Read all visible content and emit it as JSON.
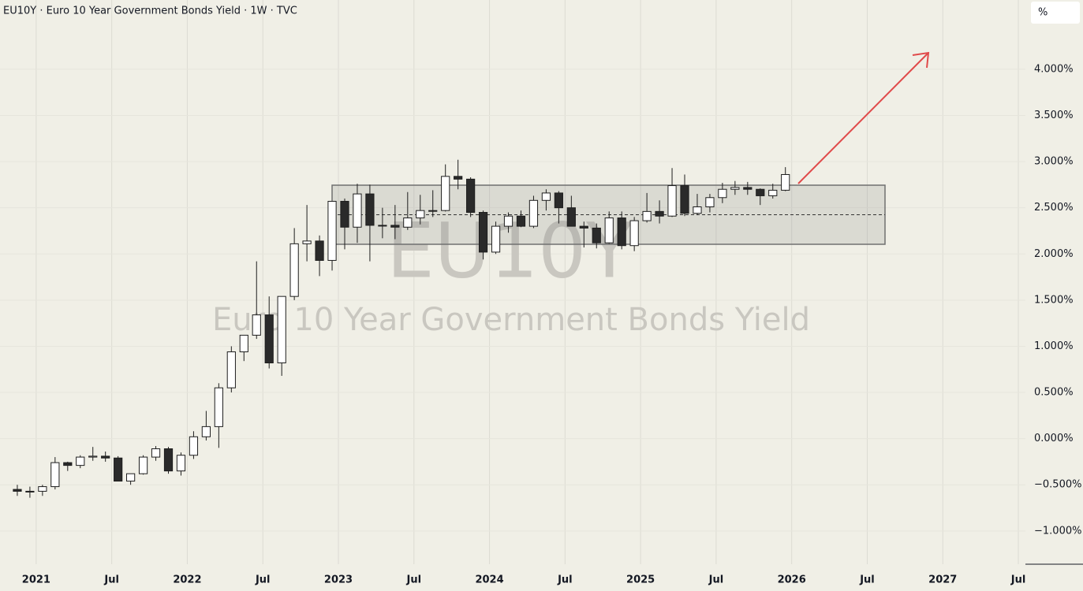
{
  "chart_data": {
    "type": "candlestick",
    "title": "EU10Y · Euro 10 Year Government Bonds Yield · 1W · TVC",
    "watermark": "EU10Y",
    "watermark_subtitle": "Euro 10 Year Government Bonds Yield",
    "unit_label": "%",
    "up_color": "#ffffff",
    "down_color": "#2a2a2a",
    "edge_color": "#1e1e1e",
    "grid": true,
    "xlim": [
      "2020-10",
      "2027-08"
    ],
    "xticks": [
      {
        "value": "2021-01",
        "label": "2021"
      },
      {
        "value": "2021-07",
        "label": "Jul"
      },
      {
        "value": "2022-01",
        "label": "2022"
      },
      {
        "value": "2022-07",
        "label": "Jul"
      },
      {
        "value": "2023-01",
        "label": "2023"
      },
      {
        "value": "2023-07",
        "label": "Jul"
      },
      {
        "value": "2024-01",
        "label": "2024"
      },
      {
        "value": "2024-07",
        "label": "Jul"
      },
      {
        "value": "2025-01",
        "label": "2025"
      },
      {
        "value": "2025-07",
        "label": "Jul"
      },
      {
        "value": "2026-01",
        "label": "2026"
      },
      {
        "value": "2026-07",
        "label": "Jul"
      },
      {
        "value": "2027-01",
        "label": "2027"
      },
      {
        "value": "2027-07",
        "label": "Jul"
      }
    ],
    "ylim": [
      -1.36,
      4.75
    ],
    "yticks": [
      {
        "value": 4,
        "label": "4.000%"
      },
      {
        "value": 3.5,
        "label": "3.500%"
      },
      {
        "value": 3,
        "label": "3.000%"
      },
      {
        "value": 2.5,
        "label": "2.500%"
      },
      {
        "value": 2,
        "label": "2.000%"
      },
      {
        "value": 1.5,
        "label": "1.500%"
      },
      {
        "value": 1,
        "label": "1.000%"
      },
      {
        "value": 0.5,
        "label": "0.500%"
      },
      {
        "value": 0,
        "label": "0.000%"
      },
      {
        "value": -0.5,
        "label": "−0.500%"
      },
      {
        "value": -1,
        "label": "−1.000%"
      }
    ],
    "x": [
      "2020-11",
      "2020-12",
      "2021-01",
      "2021-02",
      "2021-03",
      "2021-04",
      "2021-05",
      "2021-06",
      "2021-07",
      "2021-08",
      "2021-09",
      "2021-10",
      "2021-11",
      "2021-12",
      "2022-01",
      "2022-02",
      "2022-03",
      "2022-04",
      "2022-05",
      "2022-06",
      "2022-07",
      "2022-08",
      "2022-09",
      "2022-10",
      "2022-11",
      "2022-12",
      "2023-01",
      "2023-02",
      "2023-03",
      "2023-04",
      "2023-05",
      "2023-06",
      "2023-07",
      "2023-08",
      "2023-09",
      "2023-10",
      "2023-11",
      "2023-12",
      "2024-01",
      "2024-02",
      "2024-03",
      "2024-04",
      "2024-05",
      "2024-06",
      "2024-07",
      "2024-08",
      "2024-09",
      "2024-10",
      "2024-11",
      "2024-12",
      "2025-01",
      "2025-02",
      "2025-03",
      "2025-04",
      "2025-05",
      "2025-06",
      "2025-07",
      "2025-08",
      "2025-09",
      "2025-10",
      "2025-11",
      "2025-12"
    ],
    "open": [
      -0.55,
      -0.57,
      -0.57,
      -0.52,
      -0.26,
      -0.29,
      -0.2,
      -0.19,
      -0.21,
      -0.46,
      -0.38,
      -0.2,
      -0.11,
      -0.35,
      -0.18,
      0.02,
      0.13,
      0.55,
      0.94,
      1.12,
      1.34,
      0.82,
      1.54,
      2.11,
      2.14,
      1.93,
      2.57,
      2.29,
      2.65,
      2.31,
      2.31,
      2.29,
      2.39,
      2.47,
      2.47,
      2.84,
      2.81,
      2.45,
      2.02,
      2.3,
      2.41,
      2.3,
      2.58,
      2.66,
      2.5,
      2.3,
      2.28,
      2.12,
      2.39,
      2.09,
      2.36,
      2.46,
      2.41,
      2.74,
      2.44,
      2.51,
      2.61,
      2.7,
      2.72,
      2.7,
      2.63,
      2.69
    ],
    "high": [
      -0.5,
      -0.52,
      -0.5,
      -0.2,
      -0.25,
      -0.18,
      -0.09,
      -0.14,
      -0.19,
      -0.38,
      -0.18,
      -0.08,
      -0.09,
      -0.15,
      0.08,
      0.3,
      0.6,
      1.0,
      1.12,
      1.92,
      1.54,
      1.54,
      2.28,
      2.53,
      2.2,
      2.57,
      2.6,
      2.76,
      2.75,
      2.5,
      2.53,
      2.67,
      2.64,
      2.69,
      2.97,
      3.02,
      2.83,
      2.47,
      2.35,
      2.45,
      2.47,
      2.63,
      2.7,
      2.68,
      2.63,
      2.35,
      2.33,
      2.46,
      2.46,
      2.4,
      2.66,
      2.58,
      2.93,
      2.86,
      2.65,
      2.65,
      2.77,
      2.79,
      2.78,
      2.71,
      2.76,
      2.94
    ],
    "low": [
      -0.62,
      -0.64,
      -0.62,
      -0.55,
      -0.35,
      -0.32,
      -0.24,
      -0.25,
      -0.46,
      -0.5,
      -0.39,
      -0.24,
      -0.38,
      -0.4,
      -0.22,
      -0.02,
      -0.1,
      0.5,
      0.84,
      1.08,
      0.76,
      0.68,
      1.5,
      1.92,
      1.76,
      1.82,
      2.05,
      2.12,
      1.92,
      2.17,
      2.16,
      2.26,
      2.32,
      2.4,
      2.46,
      2.7,
      2.4,
      1.94,
      2.0,
      2.23,
      2.29,
      2.28,
      2.47,
      2.33,
      2.35,
      2.07,
      2.06,
      2.11,
      2.05,
      2.03,
      2.34,
      2.33,
      2.4,
      2.41,
      2.42,
      2.45,
      2.55,
      2.64,
      2.64,
      2.53,
      2.6,
      2.68
    ],
    "close": [
      -0.57,
      -0.57,
      -0.52,
      -0.26,
      -0.29,
      -0.2,
      -0.19,
      -0.21,
      -0.46,
      -0.38,
      -0.2,
      -0.11,
      -0.35,
      -0.18,
      0.02,
      0.13,
      0.55,
      0.94,
      1.12,
      1.34,
      0.82,
      1.54,
      2.11,
      2.14,
      1.93,
      2.57,
      2.29,
      2.65,
      2.31,
      2.31,
      2.29,
      2.39,
      2.47,
      2.47,
      2.84,
      2.81,
      2.45,
      2.02,
      2.3,
      2.41,
      2.3,
      2.58,
      2.66,
      2.5,
      2.3,
      2.28,
      2.12,
      2.39,
      2.09,
      2.36,
      2.46,
      2.41,
      2.74,
      2.44,
      2.51,
      2.61,
      2.7,
      2.72,
      2.7,
      2.63,
      2.69,
      2.86
    ]
  }
}
